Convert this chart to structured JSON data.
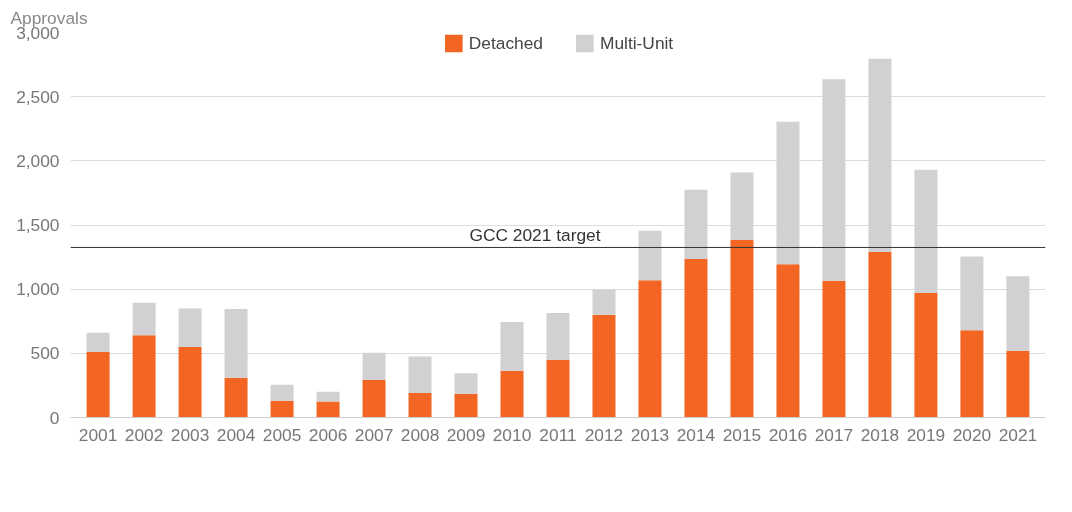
{
  "chart_data": {
    "type": "bar",
    "stacked": true,
    "ylabel": "Approvals",
    "categories": [
      "2001",
      "2002",
      "2003",
      "2004",
      "2005",
      "2006",
      "2007",
      "2008",
      "2009",
      "2010",
      "2011",
      "2012",
      "2013",
      "2014",
      "2015",
      "2016",
      "2017",
      "2018",
      "2019",
      "2020",
      "2021"
    ],
    "series": [
      {
        "name": "Detached",
        "color": "#f26522",
        "values": [
          510,
          640,
          550,
          310,
          130,
          125,
          295,
          190,
          185,
          365,
          450,
          800,
          1070,
          1235,
          1385,
          1195,
          1065,
          1290,
          970,
          680,
          520
        ]
      },
      {
        "name": "Multi-Unit",
        "color": "#d1d1d3",
        "values": [
          150,
          255,
          300,
          535,
          125,
          75,
          210,
          285,
          160,
          380,
          365,
          200,
          385,
          540,
          525,
          1110,
          1570,
          1505,
          960,
          575,
          580
        ]
      }
    ],
    "ylim": [
      0,
      3000
    ],
    "yticks": [
      {
        "value": 0,
        "label": "0"
      },
      {
        "value": 500,
        "label": "500"
      },
      {
        "value": 1000,
        "label": "1,000"
      },
      {
        "value": 1500,
        "label": "1,500"
      },
      {
        "value": 2000,
        "label": "2,000"
      },
      {
        "value": 2500,
        "label": "2,500"
      },
      {
        "value": 3000,
        "label": "3,000"
      }
    ],
    "grid": "y",
    "legend": "top",
    "ref_lines": [
      {
        "axis": "y",
        "value": 1325,
        "label": "GCC 2021 target",
        "color": "#333333"
      }
    ]
  }
}
